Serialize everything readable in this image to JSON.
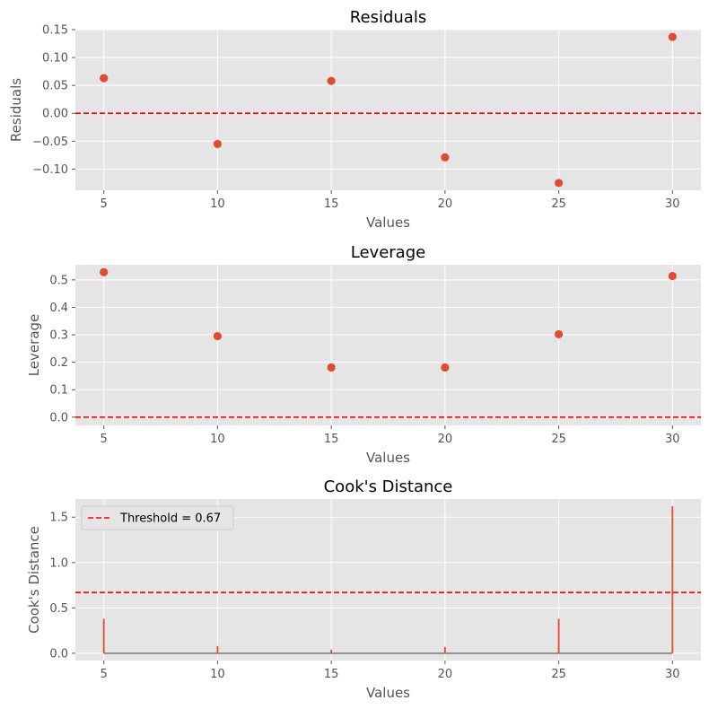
{
  "colors": {
    "panel_bg": "#E5E5E5",
    "grid": "#FFFFFF",
    "marker": "#E24A33",
    "reference_line": "#FF0000",
    "baseline": "#808080",
    "tick_text": "#555555"
  },
  "chart_data": [
    {
      "type": "scatter",
      "title": "Residuals",
      "xlabel": "Values",
      "ylabel": "Residuals",
      "x": [
        5,
        10,
        15,
        20,
        25,
        30
      ],
      "y": [
        0.063,
        -0.055,
        0.058,
        -0.079,
        -0.125,
        0.137
      ],
      "xlim": [
        3.75,
        31.25
      ],
      "ylim": [
        -0.138,
        0.15
      ],
      "xticks": [
        5,
        10,
        15,
        20,
        25,
        30
      ],
      "xtick_labels": [
        "5",
        "10",
        "15",
        "20",
        "25",
        "30"
      ],
      "yticks": [
        -0.1,
        -0.05,
        0.0,
        0.05,
        0.1,
        0.15
      ],
      "ytick_labels": [
        "−0.10",
        "−0.05",
        "0.00",
        "0.05",
        "0.10",
        "0.15"
      ],
      "hline": {
        "y": 0,
        "style": "dashed"
      },
      "grid": true
    },
    {
      "type": "scatter",
      "title": "Leverage",
      "xlabel": "Values",
      "ylabel": "Leverage",
      "x": [
        5,
        10,
        15,
        20,
        25,
        30
      ],
      "y": [
        0.528,
        0.295,
        0.181,
        0.181,
        0.302,
        0.514
      ],
      "xlim": [
        3.75,
        31.25
      ],
      "ylim": [
        -0.03,
        0.555
      ],
      "xticks": [
        5,
        10,
        15,
        20,
        25,
        30
      ],
      "xtick_labels": [
        "5",
        "10",
        "15",
        "20",
        "25",
        "30"
      ],
      "yticks": [
        0.0,
        0.1,
        0.2,
        0.3,
        0.4,
        0.5
      ],
      "ytick_labels": [
        "0.0",
        "0.1",
        "0.2",
        "0.3",
        "0.4",
        "0.5"
      ],
      "hline": {
        "y": 0,
        "style": "dashed"
      },
      "grid": true
    },
    {
      "type": "stem",
      "title": "Cook's Distance",
      "xlabel": "Values",
      "ylabel": "Cook's Distance",
      "x": [
        5,
        10,
        15,
        20,
        25,
        30
      ],
      "y": [
        0.38,
        0.08,
        0.04,
        0.07,
        0.38,
        1.62
      ],
      "xlim": [
        3.75,
        31.25
      ],
      "ylim": [
        -0.08,
        1.7
      ],
      "xticks": [
        5,
        10,
        15,
        20,
        25,
        30
      ],
      "xtick_labels": [
        "5",
        "10",
        "15",
        "20",
        "25",
        "30"
      ],
      "yticks": [
        0.0,
        0.5,
        1.0,
        1.5
      ],
      "ytick_labels": [
        "0.0",
        "0.5",
        "1.0",
        "1.5"
      ],
      "baseline": 0,
      "threshold": {
        "y": 0.67,
        "label": "Threshold = 0.67",
        "style": "dashed"
      },
      "legend": {
        "entries": [
          "Threshold = 0.67"
        ],
        "placement": "upper-left"
      },
      "grid": true
    }
  ]
}
